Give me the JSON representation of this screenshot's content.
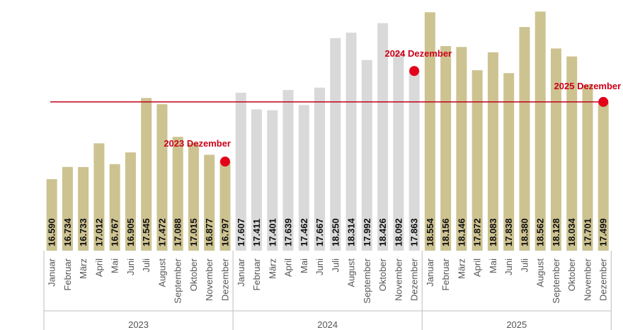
{
  "chart_data": {
    "type": "bar",
    "title": "",
    "xlabel": "",
    "ylabel": "",
    "ylim": [
      15000,
      18800
    ],
    "grid": false,
    "legend": "none",
    "groups": [
      {
        "year": "2023",
        "color": "#cdc391",
        "categories": [
          "Januar",
          "Februar",
          "März",
          "April",
          "Mai",
          "Juni",
          "Juli",
          "August",
          "September",
          "Oktober",
          "November",
          "Dezember"
        ],
        "values": [
          16590,
          16734,
          16733,
          17012,
          16767,
          16905,
          17545,
          17472,
          17088,
          17015,
          16877,
          16797
        ],
        "labels": [
          "16.590",
          "16.734",
          "16.733",
          "17.012",
          "16.767",
          "16.905",
          "17.545",
          "17.472",
          "17.088",
          "17.015",
          "16.877",
          "16.797"
        ]
      },
      {
        "year": "2024",
        "color": "#d9d9d9",
        "categories": [
          "Januar",
          "Februar",
          "März",
          "April",
          "Mai",
          "Juni",
          "Juli",
          "August",
          "September",
          "Oktober",
          "November",
          "Dezember"
        ],
        "values": [
          17607,
          17411,
          17401,
          17639,
          17462,
          17667,
          18250,
          18314,
          17992,
          18426,
          18092,
          17863
        ],
        "labels": [
          "17.607",
          "17.411",
          "17.401",
          "17.639",
          "17.462",
          "17.667",
          "18.250",
          "18.314",
          "17.992",
          "18.426",
          "18.092",
          "17.863"
        ]
      },
      {
        "year": "2025",
        "color": "#cdc391",
        "categories": [
          "Januar",
          "Februar",
          "März",
          "April",
          "Mai",
          "Juni",
          "Juli",
          "August",
          "September",
          "Oktober",
          "November",
          "Dezember"
        ],
        "values": [
          18554,
          18156,
          18146,
          17872,
          18083,
          17838,
          18380,
          18562,
          18128,
          18034,
          17701,
          17499
        ],
        "labels": [
          "18.554",
          "18.156",
          "18.146",
          "17.872",
          "18.083",
          "17.838",
          "18.380",
          "18.562",
          "18.128",
          "18.034",
          "17.701",
          "17.499"
        ]
      }
    ],
    "reference_line": {
      "value": 17499,
      "color": "#c00018"
    },
    "annotations": [
      {
        "label": "2023 Dezember",
        "year_index": 0,
        "month_index": 11,
        "value": 16797
      },
      {
        "label": "2024 Dezember",
        "year_index": 1,
        "month_index": 11,
        "value": 17863
      },
      {
        "label": "2025 Dezember",
        "year_index": 2,
        "month_index": 11,
        "value": 17499
      }
    ],
    "marker_color": "#e2001a"
  }
}
